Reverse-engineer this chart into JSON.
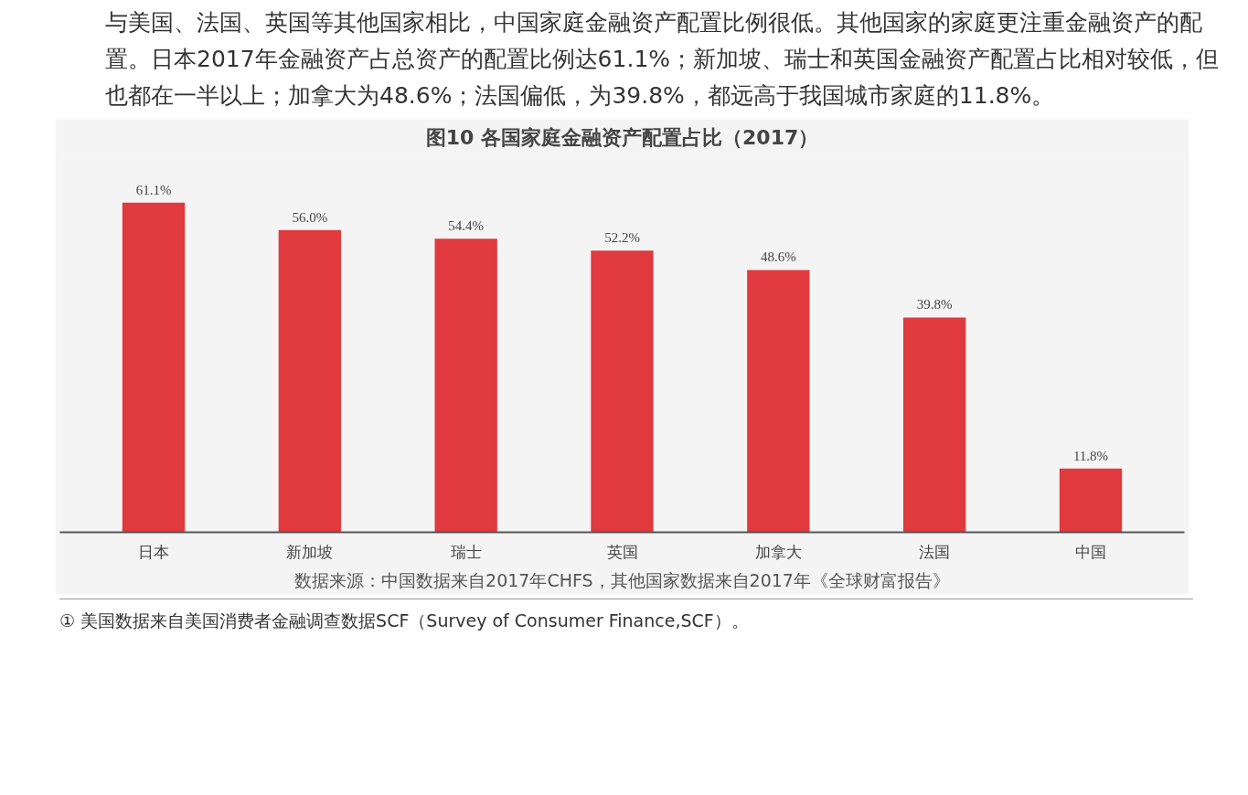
{
  "chart_data": {
    "type": "bar",
    "title": "图10 各国家庭金融资产配置占比（2017）",
    "categories": [
      "日本",
      "新加坡",
      "瑞士",
      "英国",
      "加拿大",
      "法国",
      "中国"
    ],
    "values": [
      61.1,
      56.0,
      54.4,
      52.2,
      48.6,
      39.8,
      11.8
    ],
    "value_labels": [
      "61.1%",
      "56.0%",
      "54.4%",
      "52.2%",
      "48.6%",
      "39.8%",
      "11.8%"
    ],
    "color": "#e03a3e",
    "annotations": [
      "与美国、法国、英国等其他国家相比，中国家庭金融资产配置比例很低。其他国家的家庭更注重金融资产的配置。日本2017年金融资产占总资产的配置比例达61.1%；新加坡、瑞士和英国金融资产配置占比相对较低，但也都在一半以上；加拿大为48.6%；法国偏低，为39.8%，都远高于我国城市家庭的11.8%。",
      "数据来源：中国数据来自2017年CHFS，其他国家数据来自2017年《全球财富报告》",
      "① 美国数据来自美国消费者金融调查数据SCF（Survey of Consumer Finance,SCF）。"
    ]
  }
}
